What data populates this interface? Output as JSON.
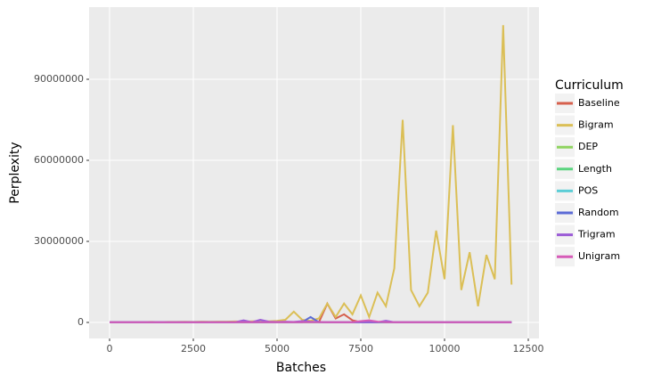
{
  "chart_data": {
    "type": "line",
    "x_label": "Batches",
    "y_label": "Perplexity",
    "legend_title": "Curriculum",
    "x": [
      0,
      250,
      500,
      750,
      1000,
      1250,
      1500,
      1750,
      2000,
      2250,
      2500,
      2750,
      3000,
      3250,
      3500,
      3750,
      4000,
      4250,
      4500,
      4750,
      5000,
      5250,
      5500,
      5750,
      6000,
      6250,
      6500,
      6750,
      7000,
      7250,
      7500,
      7750,
      8000,
      8250,
      8500,
      8750,
      9000,
      9250,
      9500,
      9750,
      10000,
      10250,
      10500,
      10750,
      11000,
      11250,
      11500,
      11750,
      12000
    ],
    "series": [
      {
        "name": "Baseline",
        "color": "#d6604d",
        "values": [
          100000,
          100000,
          100000,
          100000,
          100000,
          100000,
          100000,
          100000,
          100000,
          100000,
          100000,
          100000,
          100000,
          100000,
          100000,
          100000,
          100000,
          100000,
          100000,
          100000,
          100000,
          100000,
          100000,
          100000,
          100000,
          100000,
          7000000,
          1500000,
          3000000,
          800000,
          100000,
          100000,
          100000,
          100000,
          100000,
          100000,
          100000,
          100000,
          100000,
          100000,
          100000,
          100000,
          100000,
          100000,
          100000,
          100000,
          100000,
          100000,
          100000
        ]
      },
      {
        "name": "Bigram",
        "color": "#dbbf56",
        "values": [
          100000,
          100000,
          150000,
          100000,
          150000,
          200000,
          150000,
          200000,
          200000,
          250000,
          200000,
          300000,
          250000,
          300000,
          300000,
          350000,
          300000,
          400000,
          500000,
          400000,
          600000,
          1000000,
          4000000,
          1000000,
          600000,
          1500000,
          7000000,
          2000000,
          7000000,
          3000000,
          10000000,
          2000000,
          11000000,
          6000000,
          20000000,
          75000000,
          12000000,
          6000000,
          11000000,
          34000000,
          16000000,
          73000000,
          12000000,
          26000000,
          6000000,
          25000000,
          16000000,
          110000000,
          14000000
        ]
      },
      {
        "name": "DEP",
        "color": "#8fd460",
        "values": [
          100000,
          100000,
          100000,
          100000,
          100000,
          100000,
          100000,
          100000,
          100000,
          100000,
          100000,
          100000,
          100000,
          100000,
          100000,
          100000,
          100000,
          100000,
          100000,
          100000,
          100000,
          100000,
          100000,
          100000,
          100000,
          100000,
          100000,
          100000,
          100000,
          100000,
          100000,
          100000,
          100000,
          100000,
          100000,
          100000,
          100000,
          100000,
          100000,
          100000,
          100000,
          100000,
          100000,
          100000,
          100000,
          100000,
          100000,
          100000,
          100000
        ]
      },
      {
        "name": "Length",
        "color": "#5bd47f",
        "values": [
          100000,
          100000,
          100000,
          100000,
          100000,
          100000,
          100000,
          100000,
          100000,
          100000,
          100000,
          100000,
          100000,
          100000,
          100000,
          100000,
          100000,
          100000,
          100000,
          100000,
          100000,
          100000,
          100000,
          100000,
          100000,
          100000,
          100000,
          100000,
          100000,
          100000,
          100000,
          100000,
          100000,
          100000,
          100000,
          100000,
          100000,
          100000,
          100000,
          100000,
          100000,
          100000,
          100000,
          100000,
          100000,
          100000,
          100000,
          100000,
          100000
        ]
      },
      {
        "name": "POS",
        "color": "#5bcdd6",
        "values": [
          100000,
          100000,
          100000,
          100000,
          100000,
          100000,
          100000,
          100000,
          100000,
          100000,
          100000,
          100000,
          100000,
          100000,
          100000,
          100000,
          100000,
          100000,
          100000,
          100000,
          100000,
          100000,
          100000,
          100000,
          100000,
          100000,
          100000,
          100000,
          100000,
          100000,
          100000,
          100000,
          100000,
          100000,
          100000,
          100000,
          100000,
          100000,
          100000,
          100000,
          100000,
          100000,
          100000,
          100000,
          100000,
          100000,
          100000,
          100000,
          100000
        ]
      },
      {
        "name": "Random",
        "color": "#5b6bd6",
        "values": [
          100000,
          100000,
          100000,
          100000,
          100000,
          100000,
          100000,
          100000,
          100000,
          100000,
          100000,
          100000,
          100000,
          100000,
          100000,
          100000,
          100000,
          100000,
          100000,
          100000,
          100000,
          100000,
          100000,
          100000,
          2000000,
          100000,
          100000,
          100000,
          100000,
          100000,
          100000,
          100000,
          100000,
          100000,
          100000,
          100000,
          100000,
          100000,
          100000,
          100000,
          100000,
          100000,
          100000,
          100000,
          100000,
          100000,
          100000,
          100000,
          100000
        ]
      },
      {
        "name": "Trigram",
        "color": "#9b5bd6",
        "values": [
          100000,
          100000,
          100000,
          100000,
          100000,
          100000,
          100000,
          100000,
          100000,
          100000,
          100000,
          100000,
          100000,
          100000,
          100000,
          100000,
          800000,
          100000,
          1000000,
          300000,
          200000,
          300000,
          200000,
          500000,
          300000,
          200000,
          100000,
          100000,
          100000,
          100000,
          100000,
          100000,
          100000,
          600000,
          100000,
          100000,
          100000,
          100000,
          100000,
          100000,
          100000,
          100000,
          100000,
          100000,
          100000,
          100000,
          100000,
          100000,
          100000
        ]
      },
      {
        "name": "Unigram",
        "color": "#d65bb7",
        "values": [
          100000,
          100000,
          100000,
          100000,
          100000,
          100000,
          100000,
          100000,
          100000,
          100000,
          100000,
          100000,
          100000,
          100000,
          100000,
          100000,
          100000,
          100000,
          100000,
          100000,
          100000,
          100000,
          100000,
          100000,
          100000,
          100000,
          100000,
          100000,
          100000,
          100000,
          500000,
          800000,
          300000,
          100000,
          100000,
          100000,
          100000,
          100000,
          100000,
          100000,
          100000,
          100000,
          100000,
          100000,
          100000,
          100000,
          100000,
          100000,
          100000
        ]
      }
    ],
    "xlim": [
      -612,
      12819
    ],
    "ylim": [
      -5930000,
      116700000
    ],
    "xticks": [
      0,
      2500,
      5000,
      7500,
      10000,
      12500
    ],
    "yticks": [
      0,
      30000000,
      60000000,
      90000000
    ],
    "grid": true,
    "legend": "right"
  }
}
